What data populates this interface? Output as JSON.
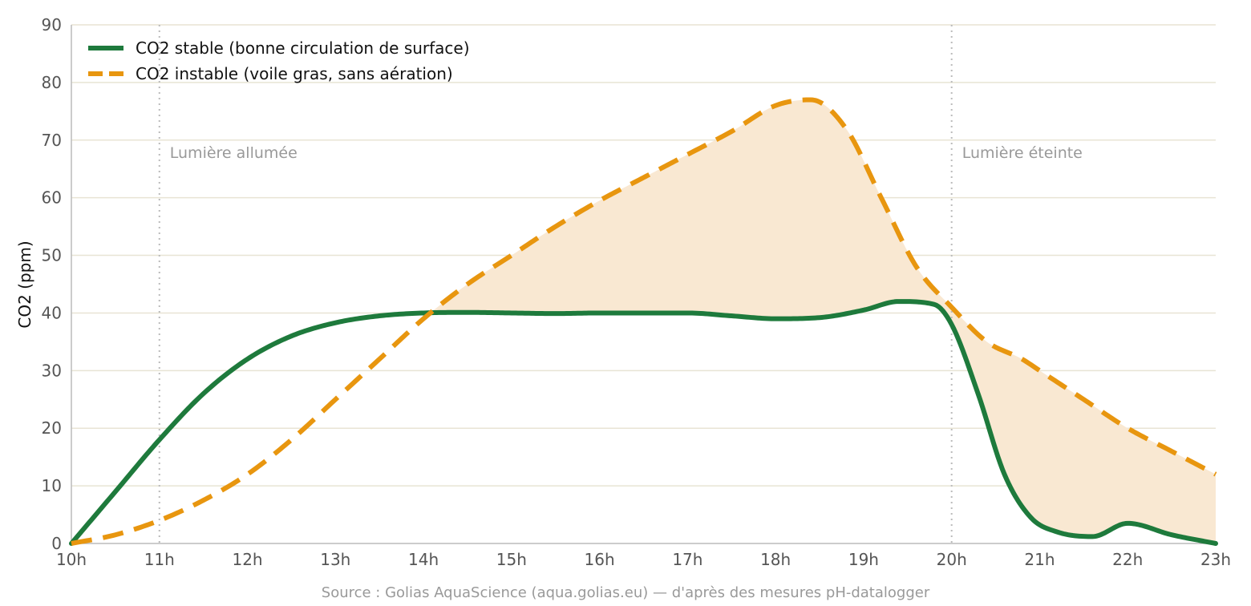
{
  "chart_data": {
    "type": "line",
    "title": "",
    "xlabel": "",
    "ylabel": "CO2 (ppm)",
    "ylim": [
      0,
      90
    ],
    "xlim": [
      10,
      23
    ],
    "x_ticks": [
      10,
      11,
      12,
      13,
      14,
      15,
      16,
      17,
      18,
      19,
      20,
      21,
      22,
      23
    ],
    "x_tick_labels": [
      "10h",
      "11h",
      "12h",
      "13h",
      "14h",
      "15h",
      "16h",
      "17h",
      "18h",
      "19h",
      "20h",
      "21h",
      "22h",
      "23h"
    ],
    "y_ticks": [
      0,
      10,
      20,
      30,
      40,
      50,
      60,
      70,
      80,
      90
    ],
    "y_tick_labels": [
      "0",
      "10",
      "20",
      "30",
      "40",
      "50",
      "60",
      "70",
      "80",
      "90"
    ],
    "grid": "horizontal",
    "legend_position": "top-left",
    "series": [
      {
        "name": "CO2 stable (bonne circulation de surface)",
        "style": "solid",
        "color": "#1e7a3c",
        "x": [
          10,
          10.5,
          11,
          11.5,
          12,
          12.5,
          13,
          13.5,
          14,
          14.5,
          15,
          15.5,
          16,
          16.5,
          17,
          17.5,
          18,
          18.5,
          19,
          19.4,
          19.8,
          20,
          20.3,
          20.6,
          20.9,
          21.2,
          21.6,
          22,
          22.5,
          23
        ],
        "y": [
          0,
          9,
          18,
          26,
          32,
          36,
          38.3,
          39.5,
          40,
          40.1,
          40,
          39.9,
          40,
          40,
          40,
          39.5,
          39,
          39.2,
          40.5,
          42,
          41.5,
          38,
          26,
          12,
          4.5,
          2,
          1.2,
          3.5,
          1.5,
          0
        ]
      },
      {
        "name": "CO2 instable (voile gras, sans aération)",
        "style": "dashed",
        "color": "#e8960f",
        "x": [
          10,
          10.5,
          11,
          11.5,
          12,
          12.5,
          13,
          13.5,
          14,
          14.5,
          15,
          15.5,
          16,
          16.5,
          17,
          17.5,
          18,
          18.4,
          18.8,
          19.2,
          19.6,
          20,
          20.4,
          20.8,
          21,
          21.5,
          22,
          22.5,
          23
        ],
        "y": [
          0,
          1.5,
          4,
          7.5,
          12,
          18,
          25,
          32,
          39,
          45,
          50,
          55,
          59.5,
          63.5,
          67.5,
          71.5,
          76,
          77,
          72,
          60,
          48,
          41,
          35,
          32,
          30,
          25,
          20,
          16,
          12
        ]
      }
    ],
    "shaded_region": {
      "between": [
        "CO2 stable (bonne circulation de surface)",
        "CO2 instable (voile gras, sans aération)"
      ],
      "where": "instable > stable",
      "color": "#f9e8d2"
    },
    "annotations": [
      {
        "x": 11,
        "label": "Lumière allumée"
      },
      {
        "x": 20,
        "label": "Lumière éteinte"
      }
    ]
  },
  "source": "Source : Golias AquaScience (aqua.golias.eu) — d'après des mesures pH-datalogger",
  "colors": {
    "gridline": "#e8e4d4",
    "axis": "#bbbbbb",
    "vline": "#bbbbbb"
  }
}
